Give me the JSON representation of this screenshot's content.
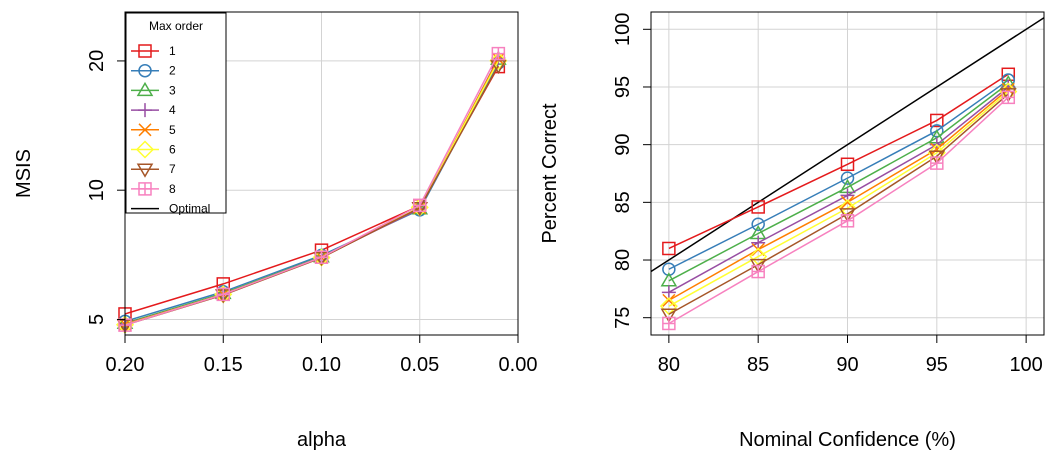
{
  "series_colors": [
    "#E41A1C",
    "#377EB8",
    "#4DAF4A",
    "#984EA3",
    "#FF7F00",
    "#FFFF33",
    "#A65628",
    "#F781BF"
  ],
  "chart_data": [
    {
      "type": "line",
      "xlabel": "alpha",
      "ylabel": "MSIS",
      "x": [
        0.2,
        0.15,
        0.1,
        0.05,
        0.01
      ],
      "x_ticks": [
        "0.20",
        "0.15",
        "0.10",
        "0.05",
        "0.00"
      ],
      "y_ticks": [
        "5",
        "10",
        "20"
      ],
      "xlim": [
        0.2,
        0.0
      ],
      "ylim": [
        4.6,
        26
      ],
      "y_scale": "log",
      "grid": true,
      "legend": {
        "title": "Max order",
        "position": "top-left",
        "entries": [
          "1",
          "2",
          "3",
          "4",
          "5",
          "6",
          "7",
          "8",
          "Optimal"
        ]
      },
      "series": [
        {
          "name": "1",
          "values": [
            5.15,
            6.05,
            7.25,
            9.2,
            19.4
          ]
        },
        {
          "name": "2",
          "values": [
            4.95,
            5.8,
            7.05,
            9.0,
            19.8
          ]
        },
        {
          "name": "3",
          "values": [
            4.9,
            5.75,
            7.0,
            9.05,
            20.2
          ]
        },
        {
          "name": "4",
          "values": [
            4.88,
            5.72,
            6.98,
            9.05,
            20.3
          ]
        },
        {
          "name": "5",
          "values": [
            4.87,
            5.72,
            6.97,
            9.1,
            20.2
          ]
        },
        {
          "name": "6",
          "values": [
            4.86,
            5.72,
            6.97,
            9.12,
            20.0
          ]
        },
        {
          "name": "7",
          "values": [
            4.85,
            5.7,
            6.96,
            9.1,
            19.5
          ]
        },
        {
          "name": "8",
          "values": [
            4.85,
            5.72,
            6.98,
            9.22,
            20.8
          ]
        }
      ]
    },
    {
      "type": "line",
      "xlabel": "Nominal Confidence (%)",
      "ylabel": "Percent Correct",
      "x": [
        80,
        85,
        90,
        95,
        99
      ],
      "x_ticks": [
        "80",
        "85",
        "90",
        "95",
        "100"
      ],
      "y_ticks": [
        "75",
        "80",
        "85",
        "90",
        "95",
        "100"
      ],
      "xlim": [
        79,
        101
      ],
      "ylim": [
        73.5,
        101.5
      ],
      "grid": true,
      "reference_line": {
        "name": "Optimal",
        "x": [
          79,
          101
        ],
        "y": [
          79,
          101
        ]
      },
      "series": [
        {
          "name": "1",
          "values": [
            81.0,
            84.6,
            88.3,
            92.1,
            96.1
          ]
        },
        {
          "name": "2",
          "values": [
            79.2,
            83.1,
            87.1,
            91.2,
            95.6
          ]
        },
        {
          "name": "3",
          "values": [
            78.2,
            82.3,
            86.3,
            90.6,
            95.3
          ]
        },
        {
          "name": "4",
          "values": [
            77.2,
            81.5,
            85.6,
            90.0,
            95.0
          ]
        },
        {
          "name": "5",
          "values": [
            76.5,
            80.9,
            85.0,
            89.6,
            94.8
          ]
        },
        {
          "name": "6",
          "values": [
            76.0,
            80.3,
            84.5,
            89.3,
            94.6
          ]
        },
        {
          "name": "7",
          "values": [
            75.3,
            79.6,
            84.0,
            89.0,
            94.4
          ]
        },
        {
          "name": "8",
          "values": [
            74.5,
            79.0,
            83.4,
            88.4,
            94.1
          ]
        }
      ]
    }
  ]
}
